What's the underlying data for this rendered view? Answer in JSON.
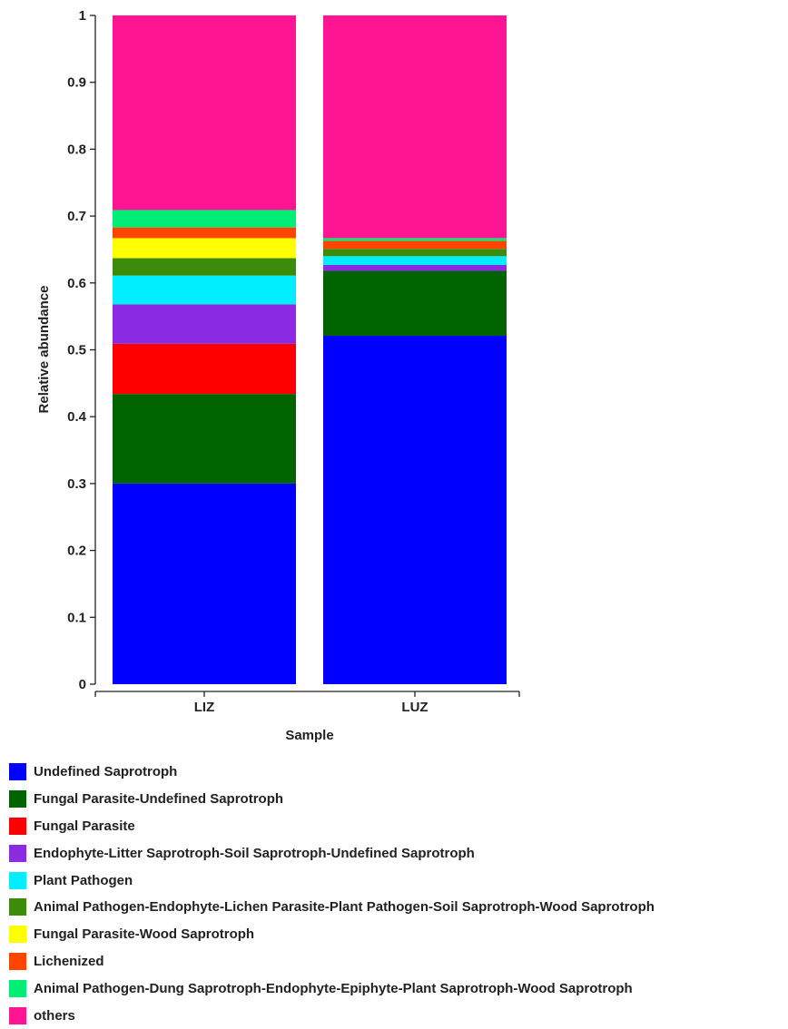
{
  "chart_data": {
    "type": "bar",
    "stacked": true,
    "title": "",
    "xlabel": "Sample",
    "ylabel": "Relative abundance",
    "ylim": [
      0,
      1
    ],
    "yticks": [
      "0",
      "0.1",
      "0.2",
      "0.3",
      "0.4",
      "0.5",
      "0.6",
      "0.7",
      "0.8",
      "0.9",
      "1"
    ],
    "categories": [
      "LIZ",
      "LUZ"
    ],
    "legend_position": "bottom",
    "series": [
      {
        "name": "Undefined Saprotroph",
        "color": "#0000ff",
        "values": [
          0.3,
          0.521
        ]
      },
      {
        "name": "Fungal Parasite-Undefined Saprotroph",
        "color": "#006400",
        "values": [
          0.134,
          0.097
        ]
      },
      {
        "name": "Fungal Parasite",
        "color": "#ff0000",
        "values": [
          0.075,
          0.0
        ]
      },
      {
        "name": "Endophyte-Litter Saprotroph-Soil Saprotroph-Undefined Saprotroph",
        "color": "#8a2be2",
        "values": [
          0.059,
          0.009
        ]
      },
      {
        "name": "Plant Pathogen",
        "color": "#00eeff",
        "values": [
          0.043,
          0.013
        ]
      },
      {
        "name": "Animal Pathogen-Endophyte-Lichen Parasite-Plant Pathogen-Soil Saprotroph-Wood Saprotroph",
        "color": "#3d8b0a",
        "values": [
          0.026,
          0.011
        ]
      },
      {
        "name": "Fungal Parasite-Wood Saprotroph",
        "color": "#ffff00",
        "values": [
          0.03,
          0.0
        ]
      },
      {
        "name": "Lichenized",
        "color": "#ff4500",
        "values": [
          0.016,
          0.012
        ]
      },
      {
        "name": "Animal Pathogen-Dung Saprotroph-Endophyte-Epiphyte-Plant Saprotroph-Wood Saprotroph",
        "color": "#00ee76",
        "values": [
          0.026,
          0.004
        ]
      },
      {
        "name": "others",
        "color": "#ff1493",
        "values": [
          0.291,
          0.333
        ]
      }
    ]
  }
}
